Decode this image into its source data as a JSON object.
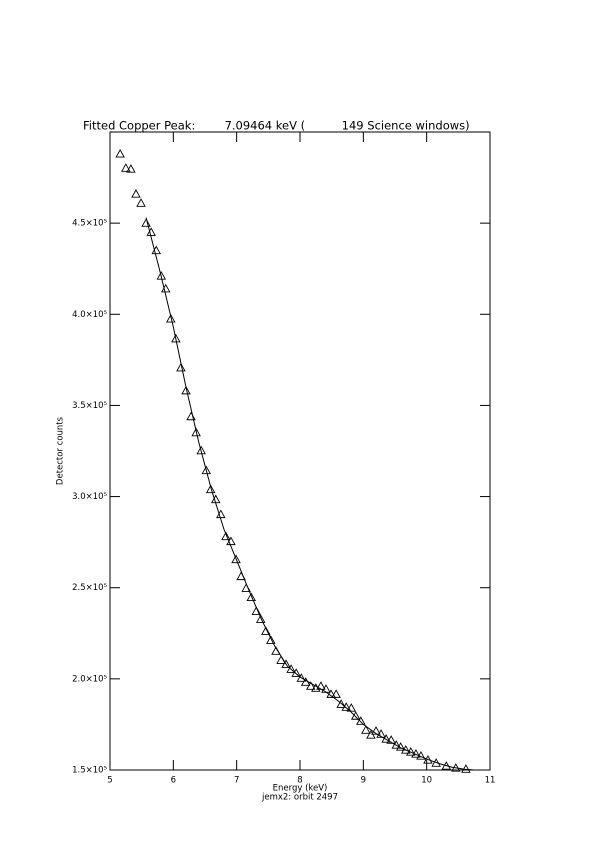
{
  "chart_data": {
    "type": "scatter",
    "title": "Fitted Copper Peak:        7.09464 keV (          149 Science windows)",
    "x_label": "Energy (keV)",
    "subtitle": "jemx2: orbit 2497",
    "y_label": "Detector counts",
    "xlim": [
      5,
      11
    ],
    "xticks": [
      5,
      6,
      7,
      8,
      9,
      10,
      11
    ],
    "ylim": [
      150000,
      500000
    ],
    "yticks": [
      {
        "value": 150000,
        "label": "1.5×10⁵"
      },
      {
        "value": 200000,
        "label": "2.0×10⁵"
      },
      {
        "value": 250000,
        "label": "2.5×10⁵"
      },
      {
        "value": 300000,
        "label": "3.0×10⁵"
      },
      {
        "value": 350000,
        "label": "3.5×10⁵"
      },
      {
        "value": 400000,
        "label": "4.0×10⁵"
      },
      {
        "value": 450000,
        "label": "4.5×10⁵"
      }
    ],
    "series": [
      {
        "style": "triangle",
        "color": "#000000",
        "x": [
          5.16,
          5.25,
          5.33,
          5.41,
          5.49,
          5.57,
          5.65,
          5.73,
          5.81,
          5.88,
          5.96,
          6.04,
          6.12,
          6.2,
          6.28,
          6.36,
          6.44,
          6.52,
          6.59,
          6.67,
          6.75,
          6.83,
          6.91,
          6.99,
          7.07,
          7.15,
          7.23,
          7.31,
          7.38,
          7.46,
          7.54,
          7.62,
          7.7,
          7.78,
          7.86,
          7.94,
          8.02,
          8.09,
          8.17,
          8.25,
          8.33,
          8.41,
          8.49,
          8.57,
          8.65,
          8.73,
          8.81,
          8.88,
          8.96,
          9.04,
          9.12,
          9.2,
          9.28,
          9.36,
          9.44,
          9.52,
          9.59,
          9.67,
          9.75,
          9.83,
          9.91,
          10.02,
          10.15,
          10.31,
          10.46,
          10.62
        ],
        "values": [
          488000,
          480200,
          479700,
          466000,
          461000,
          450000,
          445000,
          435000,
          421000,
          414000,
          397500,
          386600,
          370700,
          358100,
          343900,
          335100,
          325200,
          314300,
          303900,
          298400,
          290200,
          278100,
          275400,
          265500,
          256200,
          249700,
          244700,
          237100,
          232700,
          226100,
          221200,
          215200,
          210200,
          208000,
          205300,
          203100,
          200400,
          198200,
          196000,
          194900,
          196000,
          194400,
          191600,
          191600,
          186100,
          184500,
          184000,
          179600,
          176800,
          171900,
          169200,
          171400,
          169700,
          167000,
          166400,
          163700,
          162600,
          161000,
          159900,
          158800,
          157700,
          155500,
          153800,
          152200,
          151100,
          150500
        ]
      },
      {
        "style": "line",
        "color": "#000000",
        "x": [
          5.57,
          5.8,
          6.0,
          6.2,
          6.4,
          6.6,
          6.8,
          7.0,
          7.2,
          7.4,
          7.6,
          7.8,
          8.0,
          8.2,
          8.4,
          8.6,
          8.8,
          9.0,
          9.2,
          9.4,
          9.6,
          9.8,
          10.0,
          10.2,
          10.4,
          10.6,
          10.75
        ],
        "values": [
          453000,
          422000,
          393000,
          360000,
          330000,
          304000,
          282000,
          265000,
          248000,
          232000,
          218000,
          207000,
          201000,
          197000,
          193000,
          188000,
          182000,
          175000,
          170000,
          166000,
          162000,
          159000,
          156000,
          153500,
          151500,
          150400,
          150000
        ]
      }
    ]
  }
}
